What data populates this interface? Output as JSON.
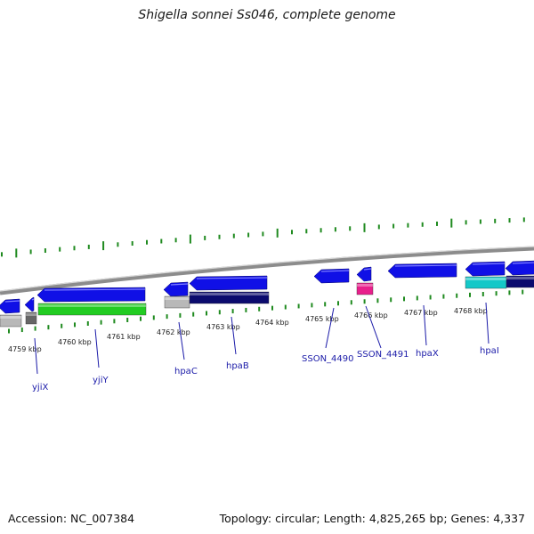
{
  "title": "Shigella sonnei Ss046, complete genome",
  "accession": "Accession: NC_007384",
  "stats": "Topology: circular; Length: 4,825,265 bp; Genes: 4,337",
  "colors": {
    "backbone": "#8c8c8c",
    "tick": "#1f8a1f",
    "forward_cds": "#1010e6",
    "reverse_cds_dark": "#0b0b6e",
    "reverse_cds_green": "#22cc22",
    "cyan_cds": "#14c8c8",
    "pink_cds": "#e8208c",
    "grey_cds": "#b8b8b8",
    "label_line": "#1a1aa8"
  },
  "scale": {
    "ticks": [
      "4759 kbp",
      "4760 kbp",
      "4761 kbp",
      "4762 kbp",
      "4763 kbp",
      "4764 kbp",
      "4765 kbp",
      "4766 kbp",
      "4767 kbp",
      "4768 kbp"
    ]
  },
  "genes": [
    "yjiX",
    "yjiY",
    "hpaC",
    "hpaB",
    "SSON_4490",
    "SSON_4491",
    "hpaX",
    "hpaI"
  ]
}
